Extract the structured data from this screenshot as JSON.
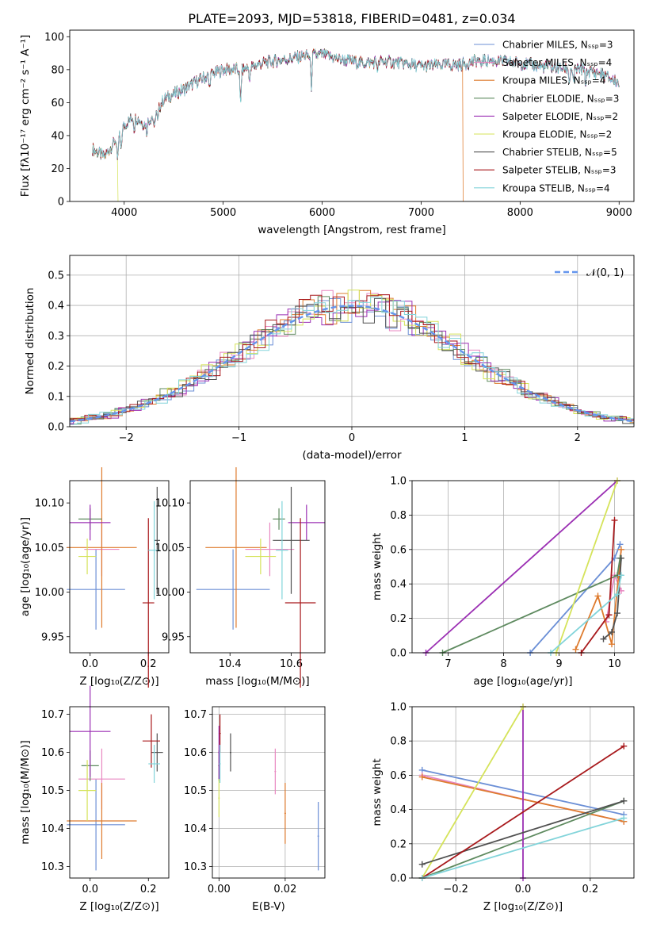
{
  "figure": {
    "title": "PLATE=2093, MJD=53818, FIBERID=0481, z=0.034"
  },
  "colors": {
    "chabrier_miles": "#6b8fd6",
    "salpeter_miles": "#e887c0",
    "kroupa_miles": "#de7b2e",
    "chabrier_elodie": "#5e8a5f",
    "salpeter_elodie": "#9b2fb3",
    "kroupa_elodie": "#d5e35a",
    "chabrier_stelib": "#505050",
    "salpeter_stelib": "#a8191c",
    "kroupa_stelib": "#82d4da",
    "normal_curve": "#6495ed"
  },
  "chart_data": [
    {
      "id": "spectrum",
      "type": "line",
      "xlabel": "wavelength [Angstrom, rest frame]",
      "ylabel": "Flux [fλ10⁻¹⁷ erg cm⁻² s⁻¹ A⁻¹]",
      "xlim": [
        3450,
        9150
      ],
      "ylim": [
        0,
        104
      ],
      "xticks": [
        4000,
        5000,
        6000,
        7000,
        8000,
        9000
      ],
      "yticks": [
        0,
        20,
        40,
        60,
        80,
        100
      ],
      "legend_position": "top-right",
      "legend": [
        {
          "label": "Chabrier MILES, Nₛₛₚ=3",
          "color": "chabrier_miles"
        },
        {
          "label": "Salpeter MILES, Nₛₛₚ=4",
          "color": "salpeter_miles"
        },
        {
          "label": "Kroupa MILES, Nₛₛₚ=4",
          "color": "kroupa_miles"
        },
        {
          "label": "Chabrier ELODIE, Nₛₛₚ=3",
          "color": "chabrier_elodie"
        },
        {
          "label": "Salpeter ELODIE, Nₛₛₚ=2",
          "color": "salpeter_elodie"
        },
        {
          "label": "Kroupa ELODIE, Nₛₛₚ=2",
          "color": "kroupa_elodie"
        },
        {
          "label": "Chabrier STELIB, Nₛₛₚ=5",
          "color": "chabrier_stelib"
        },
        {
          "label": "Salpeter STELIB, Nₛₛₚ=3",
          "color": "salpeter_stelib"
        },
        {
          "label": "Kroupa STELIB, Nₛₛₚ=4",
          "color": "kroupa_stelib"
        }
      ],
      "continuum": [
        [
          3680,
          32
        ],
        [
          3800,
          27
        ],
        [
          3900,
          36
        ],
        [
          4000,
          46
        ],
        [
          4100,
          52
        ],
        [
          4200,
          47
        ],
        [
          4300,
          52
        ],
        [
          4400,
          62
        ],
        [
          4600,
          68
        ],
        [
          4800,
          75
        ],
        [
          5000,
          80
        ],
        [
          5200,
          80
        ],
        [
          5400,
          84
        ],
        [
          5600,
          86
        ],
        [
          5800,
          88
        ],
        [
          6000,
          89
        ],
        [
          6200,
          86
        ],
        [
          6400,
          84
        ],
        [
          6600,
          85
        ],
        [
          6800,
          84
        ],
        [
          7000,
          82
        ],
        [
          7200,
          83
        ],
        [
          7400,
          83
        ],
        [
          7600,
          86
        ],
        [
          7800,
          85
        ],
        [
          8000,
          84
        ],
        [
          8200,
          82
        ],
        [
          8400,
          81
        ],
        [
          8600,
          80
        ],
        [
          8800,
          78
        ],
        [
          9000,
          72
        ]
      ],
      "absorption_lines": [
        [
          3934,
          18
        ],
        [
          3968,
          14
        ],
        [
          4102,
          8
        ],
        [
          4227,
          6
        ],
        [
          4305,
          10
        ],
        [
          4340,
          8
        ],
        [
          4861,
          8
        ],
        [
          5175,
          22
        ],
        [
          5270,
          8
        ],
        [
          5890,
          20
        ],
        [
          6563,
          6
        ],
        [
          7600,
          6
        ],
        [
          8498,
          8
        ],
        [
          8542,
          10
        ],
        [
          8662,
          8
        ]
      ],
      "dropouts": [
        {
          "series": "kroupa_elodie",
          "start": 3935,
          "end": 9000,
          "note": "drops below 0 near 3935"
        },
        {
          "series": "kroupa_elodie",
          "start": 6790,
          "end": 6800
        },
        {
          "series": "kroupa_miles",
          "start": 7420,
          "end": 9000
        }
      ]
    },
    {
      "id": "residuals",
      "type": "histogram",
      "xlabel": "(data-model)/error",
      "ylabel": "Normed distribution",
      "xlim": [
        -2.5,
        2.5
      ],
      "ylim": [
        0,
        0.565
      ],
      "xticks": [
        -2,
        -1,
        0,
        1,
        2
      ],
      "yticks": [
        0.0,
        0.1,
        0.2,
        0.3,
        0.4,
        0.5
      ],
      "grid": true,
      "legend_position": "top-right",
      "normal_label": "𝒩(0, 1)",
      "bin_width": 0.1
    },
    {
      "id": "age_vs_Z",
      "type": "scatter",
      "xlabel": "Z [log₁₀(Z/Z⊙)]",
      "ylabel": "age  [log₁₀(age/yr)]",
      "xlim": [
        -0.07,
        0.27
      ],
      "ylim": [
        9.932,
        10.125
      ],
      "xticks": [
        0.0,
        0.2
      ],
      "yticks": [
        9.95,
        10.0,
        10.05,
        10.1
      ],
      "points": [
        {
          "series": "chabrier_miles",
          "x": 0.02,
          "y": 10.003,
          "xerr": 0.1,
          "yerr": 0.045
        },
        {
          "series": "salpeter_miles",
          "x": 0.04,
          "y": 10.048,
          "xerr": 0.06,
          "yerr": 0.03
        },
        {
          "series": "kroupa_miles",
          "x": 0.04,
          "y": 10.05,
          "xerr": 0.12,
          "yerr": 0.09
        },
        {
          "series": "chabrier_elodie",
          "x": 0.0,
          "y": 10.082,
          "xerr": 0.04,
          "yerr": 0.012
        },
        {
          "series": "salpeter_elodie",
          "x": 0.0,
          "y": 10.078,
          "xerr": 0.07,
          "yerr": 0.02
        },
        {
          "series": "kroupa_elodie",
          "x": -0.01,
          "y": 10.04,
          "xerr": 0.03,
          "yerr": 0.02
        },
        {
          "series": "chabrier_stelib",
          "x": 0.23,
          "y": 10.058,
          "xerr": 0.01,
          "yerr": 0.06
        },
        {
          "series": "salpeter_stelib",
          "x": 0.2,
          "y": 9.988,
          "xerr": 0.02,
          "yerr": 0.095
        },
        {
          "series": "kroupa_stelib",
          "x": 0.22,
          "y": 10.047,
          "xerr": 0.02,
          "yerr": 0.055
        }
      ]
    },
    {
      "id": "age_vs_mass",
      "type": "scatter",
      "xlabel": "mass [log₁₀(M/M⊙)]",
      "ylabel": "",
      "xlim": [
        10.27,
        10.71
      ],
      "ylim": [
        9.932,
        10.125
      ],
      "xticks": [
        10.4,
        10.6
      ],
      "yticks": [
        9.95,
        10.0,
        10.05,
        10.1
      ],
      "points": [
        {
          "series": "chabrier_miles",
          "x": 10.41,
          "y": 10.003,
          "xerr": 0.12,
          "yerr": 0.045
        },
        {
          "series": "salpeter_miles",
          "x": 10.53,
          "y": 10.048,
          "xerr": 0.08,
          "yerr": 0.03
        },
        {
          "series": "kroupa_miles",
          "x": 10.42,
          "y": 10.05,
          "xerr": 0.1,
          "yerr": 0.09
        },
        {
          "series": "chabrier_elodie",
          "x": 10.56,
          "y": 10.082,
          "xerr": 0.02,
          "yerr": 0.012
        },
        {
          "series": "salpeter_elodie",
          "x": 10.65,
          "y": 10.078,
          "xerr": 0.06,
          "yerr": 0.02
        },
        {
          "series": "kroupa_elodie",
          "x": 10.5,
          "y": 10.04,
          "xerr": 0.05,
          "yerr": 0.02
        },
        {
          "series": "chabrier_stelib",
          "x": 10.6,
          "y": 10.058,
          "xerr": 0.06,
          "yerr": 0.06
        },
        {
          "series": "salpeter_stelib",
          "x": 10.63,
          "y": 9.988,
          "xerr": 0.05,
          "yerr": 0.095
        },
        {
          "series": "kroupa_stelib",
          "x": 10.57,
          "y": 10.047,
          "xerr": 0.02,
          "yerr": 0.055
        }
      ]
    },
    {
      "id": "weight_vs_age",
      "type": "line",
      "xlabel": "age  [log₁₀(age/yr)]",
      "ylabel": "mass weight",
      "xlim": [
        6.35,
        10.35
      ],
      "ylim": [
        0,
        1
      ],
      "xticks": [
        7,
        8,
        9,
        10
      ],
      "yticks": [
        0.0,
        0.2,
        0.4,
        0.6,
        0.8,
        1.0
      ],
      "grid": true,
      "series": [
        {
          "name": "chabrier_miles",
          "points": [
            [
              8.48,
              0.0
            ],
            [
              10.0,
              0.55
            ],
            [
              10.1,
              0.63
            ]
          ]
        },
        {
          "name": "salpeter_miles",
          "points": [
            [
              9.85,
              0.18
            ],
            [
              10.0,
              0.45
            ],
            [
              10.12,
              0.36
            ]
          ]
        },
        {
          "name": "kroupa_miles",
          "points": [
            [
              9.3,
              0.02
            ],
            [
              9.7,
              0.33
            ],
            [
              9.95,
              0.05
            ],
            [
              10.12,
              0.6
            ]
          ]
        },
        {
          "name": "chabrier_elodie",
          "points": [
            [
              6.9,
              0.0
            ],
            [
              10.05,
              0.45
            ],
            [
              10.1,
              0.55
            ]
          ]
        },
        {
          "name": "salpeter_elodie",
          "points": [
            [
              6.6,
              0.0
            ],
            [
              10.05,
              1.0
            ]
          ]
        },
        {
          "name": "kroupa_elodie",
          "points": [
            [
              8.95,
              0.0
            ],
            [
              10.05,
              1.0
            ]
          ]
        },
        {
          "name": "chabrier_stelib",
          "points": [
            [
              9.8,
              0.08
            ],
            [
              9.95,
              0.12
            ],
            [
              10.05,
              0.23
            ],
            [
              10.1,
              0.45
            ],
            [
              10.12,
              0.55
            ]
          ]
        },
        {
          "name": "salpeter_stelib",
          "points": [
            [
              9.4,
              0.0
            ],
            [
              9.9,
              0.22
            ],
            [
              10.0,
              0.77
            ]
          ]
        },
        {
          "name": "kroupa_stelib",
          "points": [
            [
              8.85,
              0.0
            ],
            [
              10.05,
              0.34
            ],
            [
              10.12,
              0.45
            ]
          ]
        }
      ]
    },
    {
      "id": "mass_vs_Z",
      "type": "scatter",
      "xlabel": "Z [log₁₀(Z/Z⊙)]",
      "ylabel": "mass [log₁₀(M/M⊙)]",
      "xlim": [
        -0.07,
        0.27
      ],
      "ylim": [
        10.27,
        10.72
      ],
      "xticks": [
        0.0,
        0.2
      ],
      "yticks": [
        10.3,
        10.4,
        10.5,
        10.6,
        10.7
      ],
      "points": [
        {
          "series": "chabrier_miles",
          "x": 0.02,
          "y": 10.41,
          "xerr": 0.1,
          "yerr": 0.12
        },
        {
          "series": "salpeter_miles",
          "x": 0.04,
          "y": 10.53,
          "xerr": 0.08,
          "yerr": 0.08
        },
        {
          "series": "kroupa_miles",
          "x": 0.04,
          "y": 10.42,
          "xerr": 0.12,
          "yerr": 0.1
        },
        {
          "series": "chabrier_elodie",
          "x": 0.0,
          "y": 10.565,
          "xerr": 0.03,
          "yerr": 0.04
        },
        {
          "series": "salpeter_elodie",
          "x": 0.0,
          "y": 10.655,
          "xerr": 0.07,
          "yerr": 0.12
        },
        {
          "series": "kroupa_elodie",
          "x": -0.01,
          "y": 10.5,
          "xerr": 0.03,
          "yerr": 0.08
        },
        {
          "series": "chabrier_stelib",
          "x": 0.23,
          "y": 10.6,
          "xerr": 0.02,
          "yerr": 0.05
        },
        {
          "series": "salpeter_stelib",
          "x": 0.21,
          "y": 10.63,
          "xerr": 0.03,
          "yerr": 0.07
        },
        {
          "series": "kroupa_stelib",
          "x": 0.22,
          "y": 10.57,
          "xerr": 0.02,
          "yerr": 0.05
        }
      ]
    },
    {
      "id": "mass_vs_ebv",
      "type": "scatter",
      "xlabel": "E(B-V)",
      "ylabel": "",
      "xlim": [
        -0.002,
        0.032
      ],
      "ylim": [
        10.27,
        10.72
      ],
      "xticks": [
        0.0,
        0.02
      ],
      "yticks": [
        10.3,
        10.4,
        10.5,
        10.6,
        10.7
      ],
      "grid": true,
      "points": [
        {
          "series": "chabrier_miles",
          "x": 0.03,
          "y": 10.38,
          "yerr": 0.09
        },
        {
          "series": "salpeter_miles",
          "x": 0.017,
          "y": 10.55,
          "yerr": 0.06
        },
        {
          "series": "kroupa_miles",
          "x": 0.02,
          "y": 10.44,
          "yerr": 0.08
        },
        {
          "series": "chabrier_elodie",
          "x": 0.0,
          "y": 10.565,
          "yerr": 0.04
        },
        {
          "series": "salpeter_elodie",
          "x": 0.0,
          "y": 10.6,
          "yerr": 0.07
        },
        {
          "series": "kroupa_elodie",
          "x": 0.0,
          "y": 10.48,
          "yerr": 0.05
        },
        {
          "series": "chabrier_stelib",
          "x": 0.0035,
          "y": 10.6,
          "yerr": 0.05
        },
        {
          "series": "salpeter_stelib",
          "x": 0.0003,
          "y": 10.65,
          "yerr": 0.05
        },
        {
          "series": "kroupa_stelib",
          "x": 0.0003,
          "y": 10.57,
          "yerr": 0.05
        }
      ]
    },
    {
      "id": "weight_vs_Z",
      "type": "line",
      "xlabel": "Z [log₁₀(Z/Z⊙)]",
      "ylabel": "mass weight",
      "xlim": [
        -0.33,
        0.33
      ],
      "ylim": [
        0,
        1
      ],
      "xticks": [
        -0.2,
        0.0,
        0.2
      ],
      "yticks": [
        0.0,
        0.2,
        0.4,
        0.6,
        0.8,
        1.0
      ],
      "grid": true,
      "series": [
        {
          "name": "chabrier_miles",
          "points": [
            [
              -0.3,
              0.63
            ],
            [
              0.3,
              0.37
            ]
          ]
        },
        {
          "name": "salpeter_miles",
          "points": [
            [
              -0.3,
              0.6
            ],
            [
              0.0,
              0.46
            ],
            [
              0.3,
              0.33
            ]
          ]
        },
        {
          "name": "kroupa_miles",
          "points": [
            [
              -0.3,
              0.59
            ],
            [
              0.3,
              0.33
            ]
          ]
        },
        {
          "name": "chabrier_elodie",
          "points": [
            [
              -0.3,
              0.0
            ],
            [
              0.3,
              0.45
            ]
          ]
        },
        {
          "name": "salpeter_elodie",
          "points": [
            [
              0.0,
              0.0
            ],
            [
              0.0,
              1.0
            ]
          ]
        },
        {
          "name": "kroupa_elodie",
          "points": [
            [
              -0.3,
              0.0
            ],
            [
              0.0,
              1.0
            ]
          ]
        },
        {
          "name": "chabrier_stelib",
          "points": [
            [
              -0.3,
              0.08
            ],
            [
              0.3,
              0.45
            ]
          ]
        },
        {
          "name": "salpeter_stelib",
          "points": [
            [
              -0.3,
              0.0
            ],
            [
              0.3,
              0.77
            ]
          ]
        },
        {
          "name": "kroupa_stelib",
          "points": [
            [
              -0.3,
              0.0
            ],
            [
              0.3,
              0.35
            ]
          ]
        }
      ]
    }
  ]
}
